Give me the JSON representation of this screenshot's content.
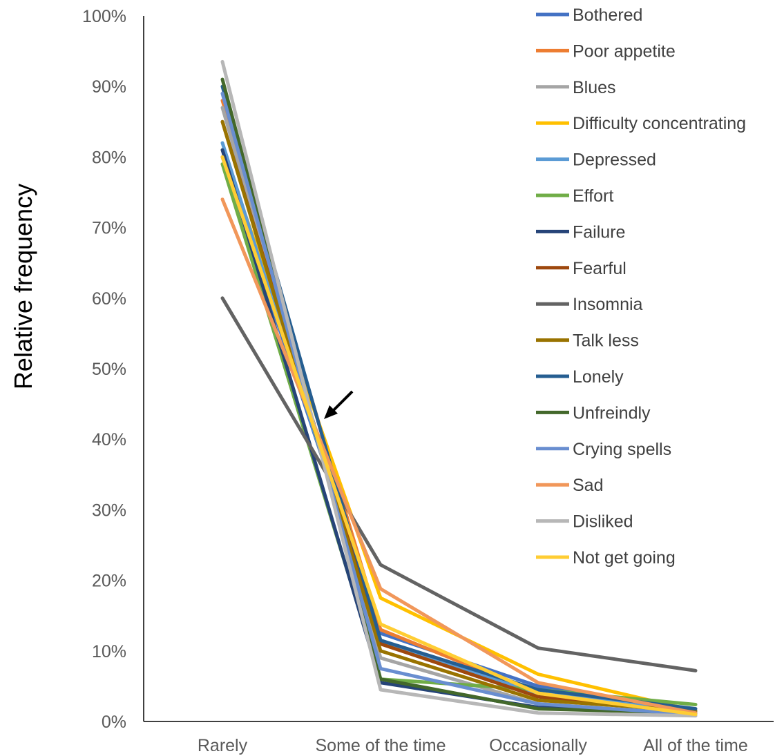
{
  "chart_data": {
    "type": "line",
    "title": "",
    "xlabel": "",
    "ylabel": "Relative frequency",
    "categories": [
      "Rarely",
      "Some of the time",
      "Occasionally",
      "All of the time"
    ],
    "ylim": [
      0,
      1
    ],
    "yticks": [
      "0%",
      "10%",
      "20%",
      "30%",
      "40%",
      "50%",
      "60%",
      "70%",
      "80%",
      "90%",
      "100%"
    ],
    "grid": false,
    "legend_position": "top-right",
    "series": [
      {
        "name": "Bothered",
        "color": "#4472C4",
        "values": [
          0.8,
          0.125,
          0.05,
          0.015
        ]
      },
      {
        "name": "Poor appetite",
        "color": "#ED7D31",
        "values": [
          0.88,
          0.13,
          0.04,
          0.012
        ]
      },
      {
        "name": "Blues",
        "color": "#A5A5A5",
        "values": [
          0.87,
          0.09,
          0.025,
          0.01
        ]
      },
      {
        "name": "Difficulty concentrating",
        "color": "#FFC000",
        "values": [
          0.81,
          0.175,
          0.067,
          0.015
        ]
      },
      {
        "name": "Depressed",
        "color": "#5B9BD5",
        "values": [
          0.82,
          0.115,
          0.04,
          0.015
        ]
      },
      {
        "name": "Effort",
        "color": "#70AD47",
        "values": [
          0.79,
          0.06,
          0.045,
          0.024
        ]
      },
      {
        "name": "Failure",
        "color": "#264478",
        "values": [
          0.81,
          0.055,
          0.02,
          0.012
        ]
      },
      {
        "name": "Fearful",
        "color": "#9E480E",
        "values": [
          0.85,
          0.11,
          0.035,
          0.012
        ]
      },
      {
        "name": "Insomnia",
        "color": "#636363",
        "values": [
          0.6,
          0.222,
          0.104,
          0.072
        ]
      },
      {
        "name": "Talk less",
        "color": "#997300",
        "values": [
          0.85,
          0.1,
          0.03,
          0.015
        ]
      },
      {
        "name": "Lonely",
        "color": "#255E91",
        "values": [
          0.9,
          0.115,
          0.045,
          0.018
        ]
      },
      {
        "name": "Unfreindly",
        "color": "#43682B",
        "values": [
          0.91,
          0.06,
          0.018,
          0.012
        ]
      },
      {
        "name": "Crying spells",
        "color": "#698ED0",
        "values": [
          0.89,
          0.075,
          0.025,
          0.01
        ]
      },
      {
        "name": "Sad",
        "color": "#F1975A",
        "values": [
          0.74,
          0.188,
          0.055,
          0.012
        ]
      },
      {
        "name": "Disliked",
        "color": "#B7B7B7",
        "values": [
          0.935,
          0.045,
          0.012,
          0.008
        ]
      },
      {
        "name": "Not get going",
        "color": "#FFCD33",
        "values": [
          0.8,
          0.138,
          0.04,
          0.01
        ]
      }
    ]
  }
}
